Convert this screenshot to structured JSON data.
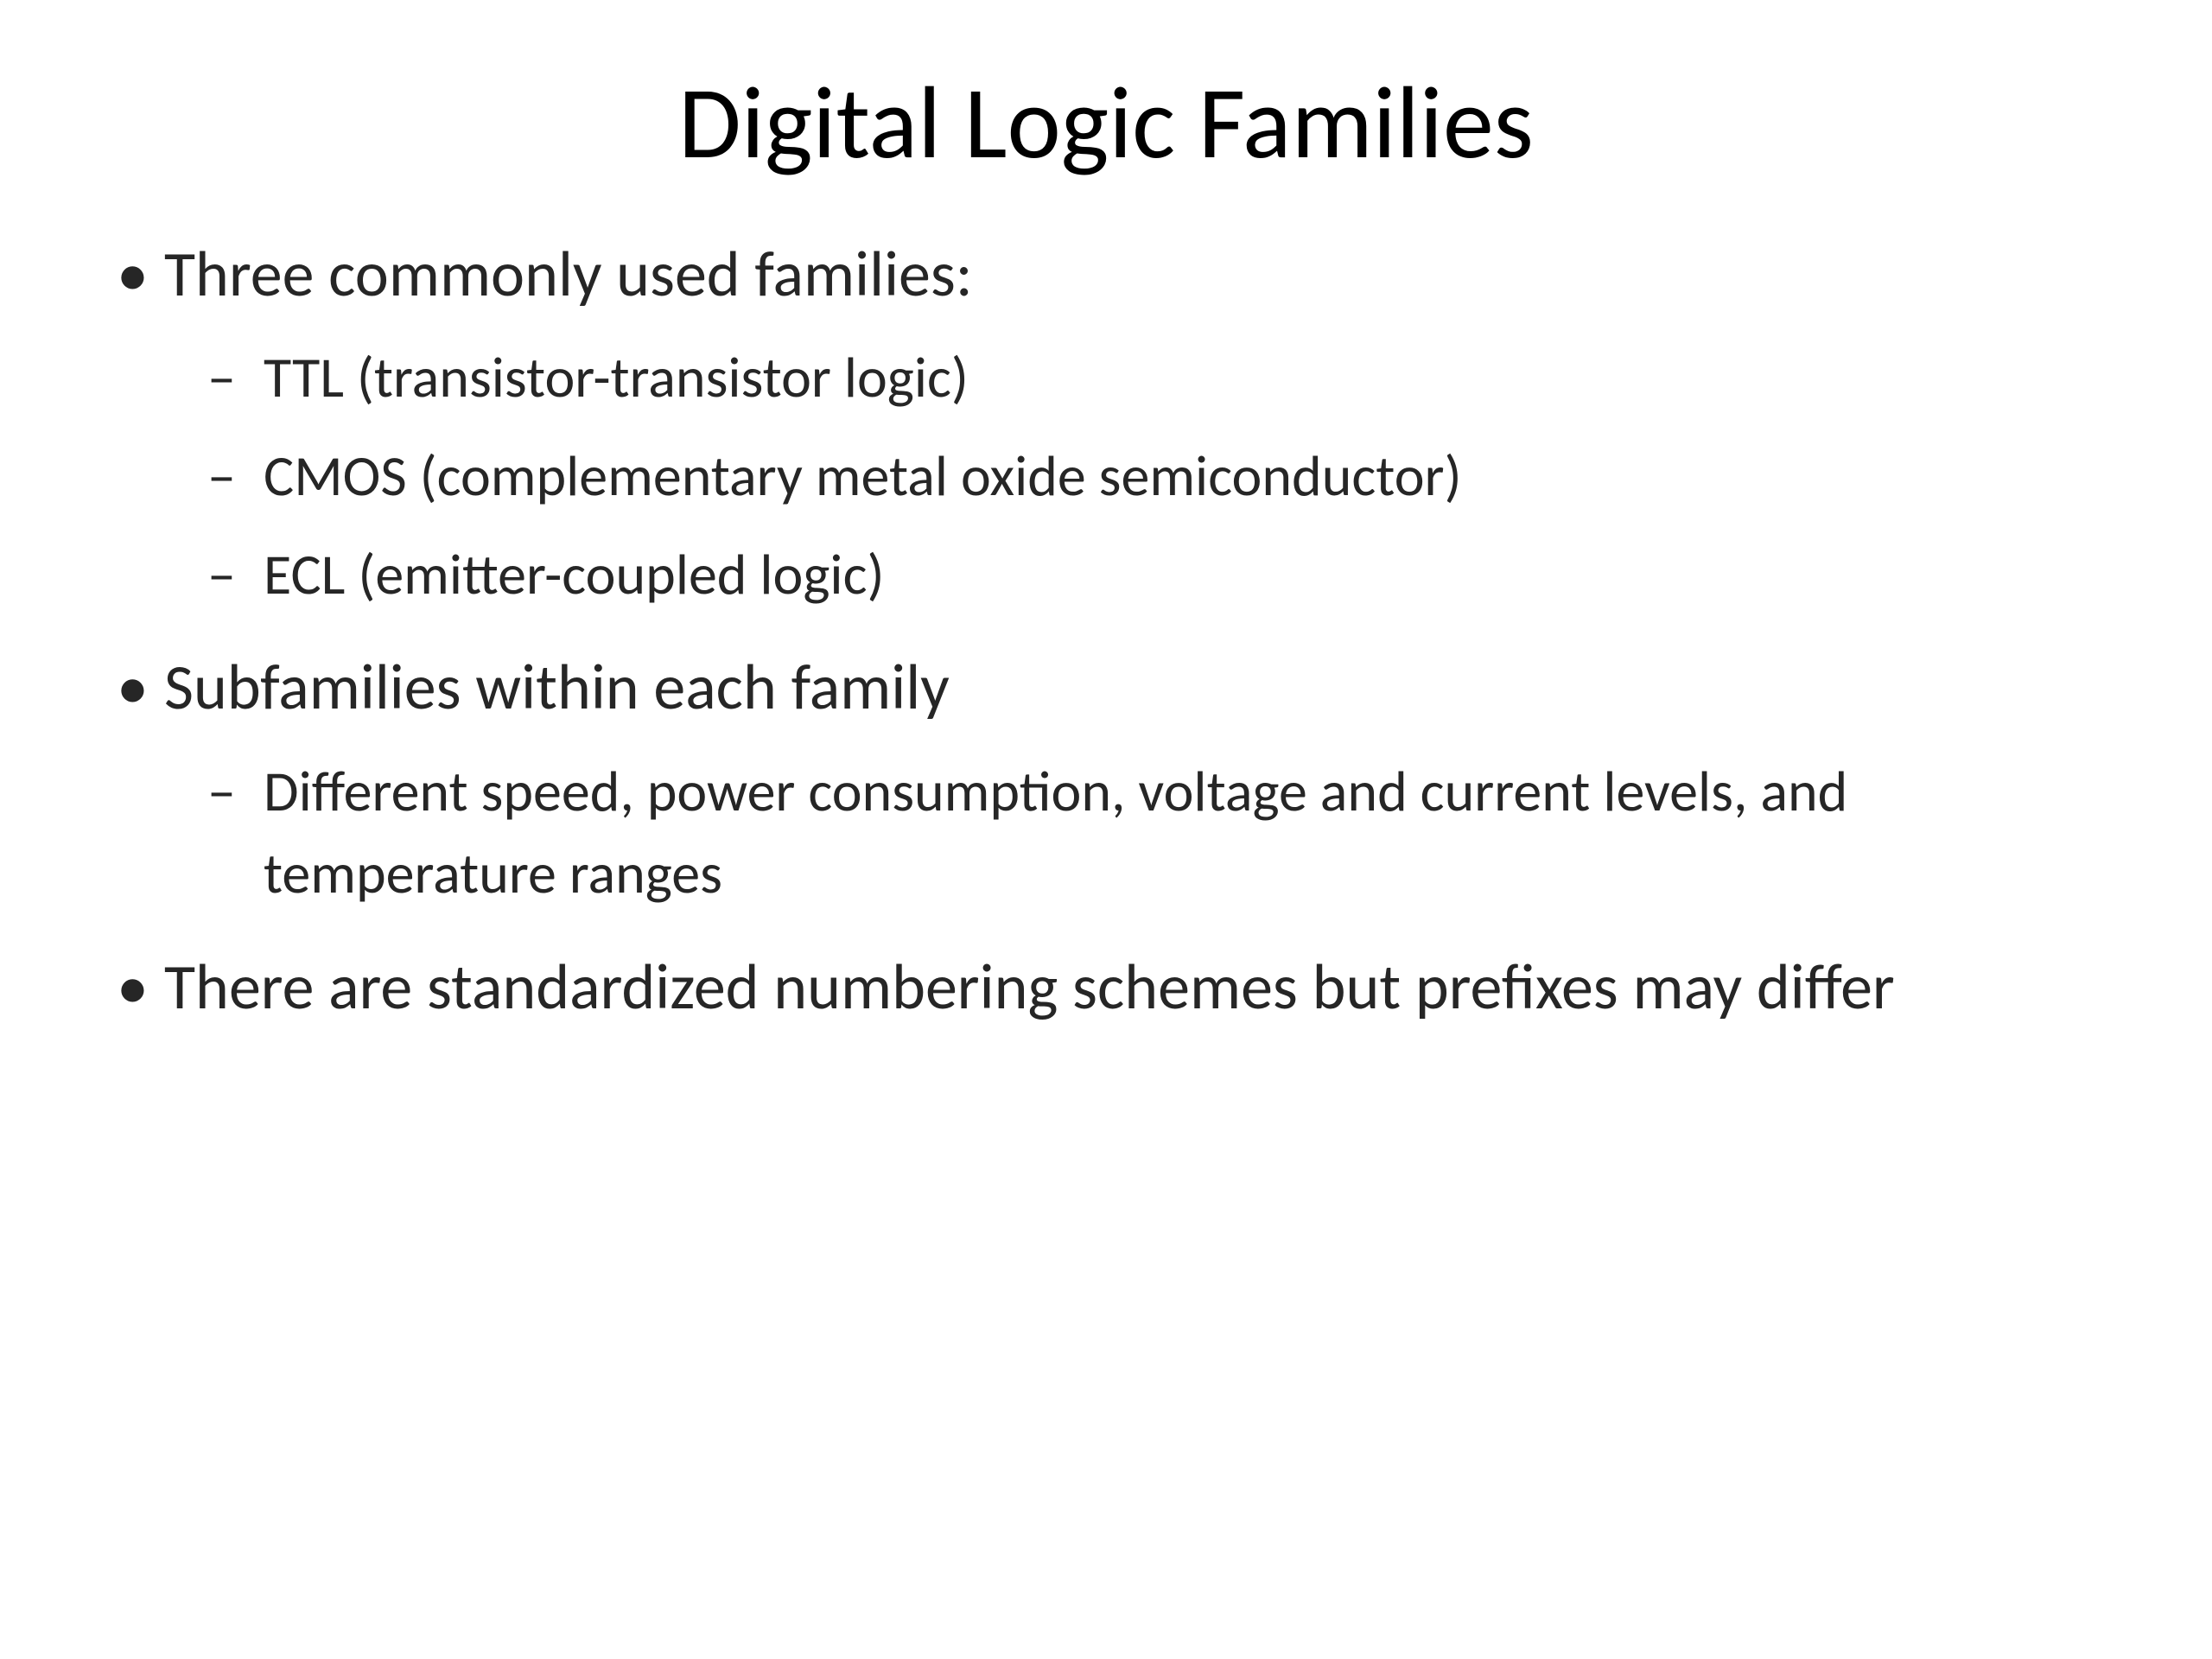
{
  "slide": {
    "title": "Digital Logic Families",
    "title_fontsize": 118,
    "body_fontsize_l1": 74,
    "body_fontsize_l2": 66,
    "background_color": "#ffffff",
    "text_color": "#000000",
    "body_text_color": "#262626",
    "bullets": [
      {
        "level": 1,
        "text": "Three commonly used families:",
        "children": [
          {
            "level": 2,
            "text": "TTL (transistor-transistor logic)"
          },
          {
            "level": 2,
            "text": "CMOS (complementary metal oxide semiconductor)"
          },
          {
            "level": 2,
            "text": "ECL (emitter-coupled logic)"
          }
        ]
      },
      {
        "level": 1,
        "text": "Subfamilies within each family",
        "children": [
          {
            "level": 2,
            "text": "Different speed, power consumption, voltage and current levels, and temperature ranges"
          }
        ]
      },
      {
        "level": 1,
        "text": "There are standardized numbering schemes but prefixes may differ",
        "children": []
      }
    ],
    "markers": {
      "l1": "•",
      "l2": "–"
    }
  }
}
